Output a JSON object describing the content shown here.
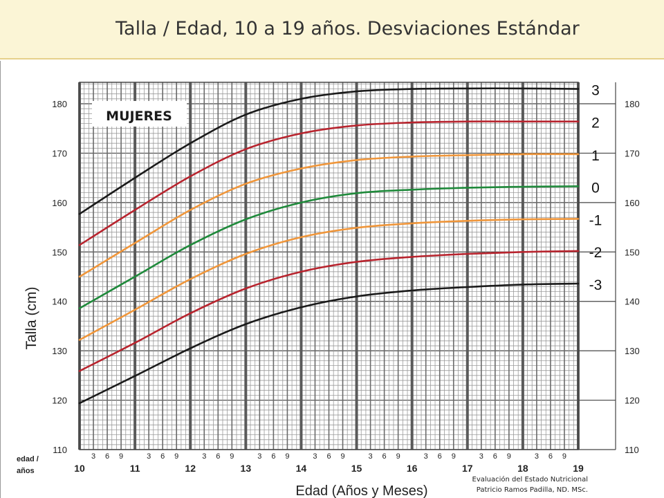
{
  "header": {
    "title": "Talla / Edad, 10 a 19 años. Desviaciones Estándar"
  },
  "credit": {
    "line1": "Evaluación del Estado Nutricional",
    "line2": "Patricio Ramos Padilla, ND. MSc."
  },
  "colors": {
    "background_banner": "#fbf5d6",
    "black": "#1a1a1a",
    "red": "#b8242e",
    "orange": "#f0963a",
    "green": "#1f8a3b",
    "grid": "#555555"
  },
  "chart_data": {
    "type": "line",
    "title": "Talla / Edad, 10 a 19 años. Desviaciones Estándar",
    "subtitle": "MUJERES",
    "xlabel": "Edad (Años y Meses)",
    "ylabel": "Talla (cm)",
    "corner_label": [
      "edad /",
      "años"
    ],
    "xlim": [
      10,
      19
    ],
    "ylim": [
      110,
      185
    ],
    "x_ticks": [
      10,
      11,
      12,
      13,
      14,
      15,
      16,
      17,
      18,
      19
    ],
    "x_minor_tick_labels": [
      "3",
      "6",
      "9"
    ],
    "y_ticks": [
      110,
      120,
      130,
      140,
      150,
      160,
      170,
      180
    ],
    "grid": true,
    "legend": "right-edge labels",
    "x": [
      10,
      11,
      12,
      13,
      14,
      15,
      16,
      17,
      18,
      19
    ],
    "series": [
      {
        "name": "3",
        "color": "black",
        "values": [
          157.7,
          165.0,
          172.0,
          177.8,
          181.0,
          182.5,
          183.0,
          183.1,
          183.1,
          183.0
        ]
      },
      {
        "name": "2",
        "color": "red",
        "values": [
          151.4,
          158.5,
          165.3,
          170.8,
          174.0,
          175.6,
          176.2,
          176.4,
          176.4,
          176.4
        ]
      },
      {
        "name": "1",
        "color": "orange",
        "values": [
          145.0,
          151.8,
          158.5,
          163.8,
          166.9,
          168.6,
          169.3,
          169.6,
          169.8,
          169.8
        ]
      },
      {
        "name": "0",
        "color": "green",
        "values": [
          138.6,
          145.0,
          151.4,
          156.6,
          160.0,
          161.9,
          162.6,
          163.0,
          163.2,
          163.3
        ]
      },
      {
        "name": "-1",
        "color": "orange",
        "values": [
          132.2,
          138.3,
          144.5,
          149.6,
          153.0,
          154.9,
          155.8,
          156.3,
          156.6,
          156.7
        ]
      },
      {
        "name": "-2",
        "color": "red",
        "values": [
          125.9,
          131.6,
          137.6,
          142.6,
          146.0,
          148.0,
          149.0,
          149.6,
          150.0,
          150.2
        ]
      },
      {
        "name": "-3",
        "color": "black",
        "values": [
          119.4,
          124.9,
          130.5,
          135.4,
          138.8,
          141.0,
          142.2,
          142.9,
          143.4,
          143.6
        ]
      }
    ]
  }
}
